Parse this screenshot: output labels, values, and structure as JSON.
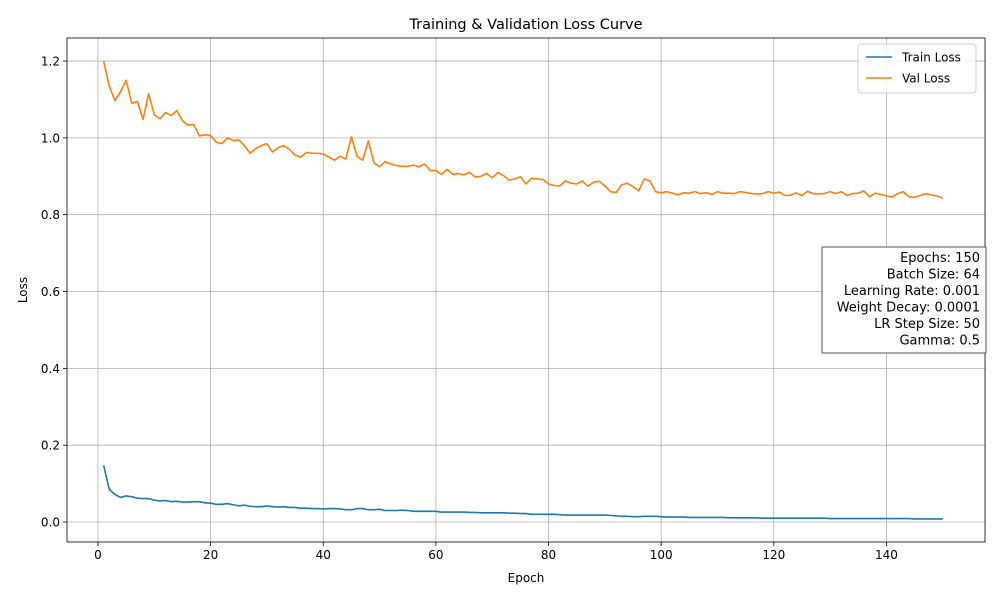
{
  "chart_data": {
    "type": "line",
    "title": "Training & Validation Loss Curve",
    "xlabel": "Epoch",
    "ylabel": "Loss",
    "xlim": [
      -5.5,
      157.5
    ],
    "ylim": [
      -0.052,
      1.26
    ],
    "xticks": [
      0,
      20,
      40,
      60,
      80,
      100,
      120,
      140
    ],
    "yticks": [
      0.0,
      0.2,
      0.4,
      0.6,
      0.8,
      1.0,
      1.2
    ],
    "xtick_labels": [
      "0",
      "20",
      "40",
      "60",
      "80",
      "100",
      "120",
      "140"
    ],
    "ytick_labels": [
      "0.0",
      "0.2",
      "0.4",
      "0.6",
      "0.8",
      "1.0",
      "1.2"
    ],
    "grid": true,
    "legend_position": "top-right",
    "series": [
      {
        "name": "Train Loss",
        "color": "#1f77b4",
        "x_start": 1,
        "x_step": 1,
        "values": [
          0.148,
          0.085,
          0.072,
          0.064,
          0.068,
          0.066,
          0.062,
          0.061,
          0.061,
          0.057,
          0.055,
          0.056,
          0.053,
          0.054,
          0.052,
          0.052,
          0.053,
          0.053,
          0.05,
          0.049,
          0.046,
          0.046,
          0.048,
          0.045,
          0.042,
          0.044,
          0.041,
          0.04,
          0.04,
          0.042,
          0.04,
          0.039,
          0.04,
          0.038,
          0.038,
          0.036,
          0.036,
          0.035,
          0.035,
          0.034,
          0.035,
          0.035,
          0.034,
          0.032,
          0.032,
          0.035,
          0.035,
          0.032,
          0.032,
          0.033,
          0.03,
          0.03,
          0.03,
          0.031,
          0.03,
          0.028,
          0.028,
          0.028,
          0.028,
          0.028,
          0.026,
          0.026,
          0.026,
          0.026,
          0.026,
          0.025,
          0.025,
          0.024,
          0.024,
          0.024,
          0.024,
          0.024,
          0.023,
          0.023,
          0.022,
          0.022,
          0.02,
          0.02,
          0.02,
          0.02,
          0.02,
          0.019,
          0.018,
          0.018,
          0.018,
          0.018,
          0.018,
          0.018,
          0.018,
          0.018,
          0.017,
          0.016,
          0.015,
          0.015,
          0.014,
          0.014,
          0.015,
          0.015,
          0.015,
          0.014,
          0.013,
          0.013,
          0.013,
          0.013,
          0.012,
          0.012,
          0.012,
          0.012,
          0.012,
          0.012,
          0.012,
          0.011,
          0.011,
          0.011,
          0.011,
          0.011,
          0.011,
          0.01,
          0.01,
          0.01,
          0.01,
          0.01,
          0.01,
          0.01,
          0.01,
          0.01,
          0.01,
          0.01,
          0.01,
          0.009,
          0.009,
          0.009,
          0.009,
          0.009,
          0.009,
          0.009,
          0.009,
          0.009,
          0.009,
          0.009,
          0.009,
          0.009,
          0.009,
          0.009,
          0.008,
          0.008,
          0.008,
          0.008,
          0.008,
          0.008
        ]
      },
      {
        "name": "Val Loss",
        "color": "#ff7f0e",
        "x_start": 1,
        "x_step": 1,
        "values": [
          1.2,
          1.135,
          1.097,
          1.12,
          1.15,
          1.09,
          1.095,
          1.048,
          1.115,
          1.06,
          1.05,
          1.066,
          1.058,
          1.071,
          1.045,
          1.033,
          1.035,
          1.005,
          1.008,
          1.006,
          0.989,
          0.985,
          1.0,
          0.993,
          0.995,
          0.98,
          0.96,
          0.972,
          0.98,
          0.985,
          0.963,
          0.975,
          0.98,
          0.97,
          0.955,
          0.95,
          0.962,
          0.96,
          0.96,
          0.958,
          0.95,
          0.942,
          0.952,
          0.945,
          1.003,
          0.952,
          0.942,
          0.992,
          0.935,
          0.925,
          0.938,
          0.932,
          0.928,
          0.926,
          0.926,
          0.929,
          0.925,
          0.932,
          0.915,
          0.915,
          0.905,
          0.918,
          0.905,
          0.907,
          0.904,
          0.91,
          0.898,
          0.9,
          0.908,
          0.896,
          0.91,
          0.902,
          0.89,
          0.893,
          0.899,
          0.88,
          0.895,
          0.893,
          0.892,
          0.88,
          0.876,
          0.875,
          0.888,
          0.882,
          0.88,
          0.888,
          0.874,
          0.885,
          0.887,
          0.875,
          0.86,
          0.858,
          0.878,
          0.882,
          0.873,
          0.862,
          0.893,
          0.888,
          0.86,
          0.857,
          0.86,
          0.856,
          0.852,
          0.857,
          0.856,
          0.86,
          0.855,
          0.857,
          0.853,
          0.86,
          0.856,
          0.856,
          0.855,
          0.86,
          0.858,
          0.855,
          0.854,
          0.855,
          0.86,
          0.856,
          0.859,
          0.85,
          0.851,
          0.857,
          0.85,
          0.861,
          0.855,
          0.854,
          0.855,
          0.86,
          0.855,
          0.86,
          0.85,
          0.855,
          0.856,
          0.862,
          0.847,
          0.856,
          0.853,
          0.849,
          0.846,
          0.855,
          0.86,
          0.847,
          0.845,
          0.85,
          0.855,
          0.851,
          0.849,
          0.843
        ]
      }
    ],
    "annotation": [
      "Epochs: 150",
      "Batch Size: 64",
      "Learning Rate: 0.001",
      "Weight Decay: 0.0001",
      "LR Step Size: 50",
      "Gamma: 0.5"
    ]
  }
}
